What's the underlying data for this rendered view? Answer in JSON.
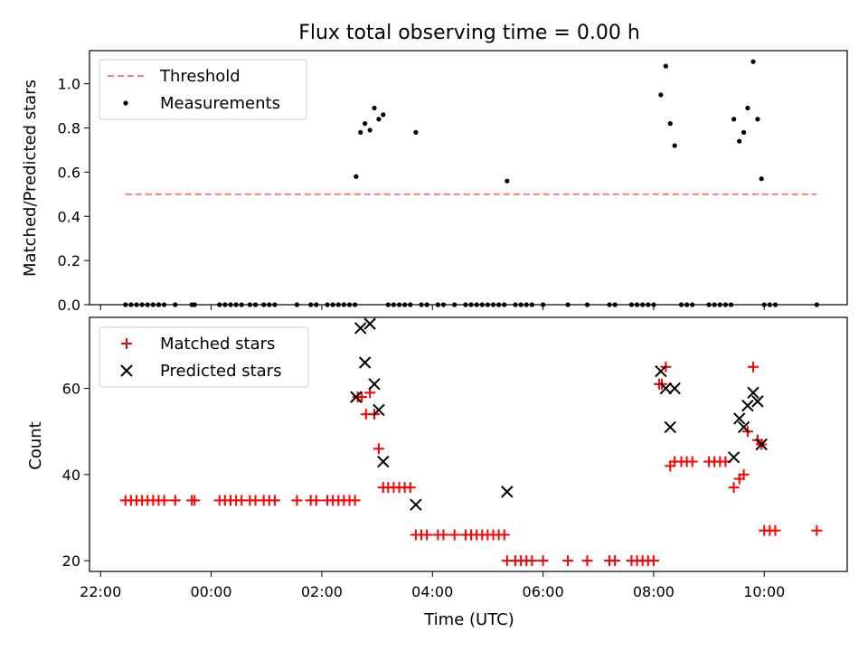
{
  "chart_data": [
    {
      "type": "scatter",
      "title": "Flux total observing time = 0.00 h",
      "xlabel": "",
      "ylabel": "Matched/Predicted stars",
      "xlim": [
        -2.2,
        11.5
      ],
      "ylim": [
        0,
        1.15
      ],
      "yticks": [
        0.0,
        0.2,
        0.4,
        0.6,
        0.8,
        1.0
      ],
      "ytick_labels": [
        "0.0",
        "0.2",
        "0.4",
        "0.6",
        "0.8",
        "1.0"
      ],
      "legend_position": "top-left",
      "threshold": {
        "name": "Threshold",
        "color": "#ff7f7f",
        "style": "dashed",
        "x": [
          -1.55,
          10.95
        ],
        "y": 0.5
      },
      "series": [
        {
          "name": "Measurements",
          "marker": "dot",
          "color": "#000000",
          "x": [
            -1.55,
            -1.45,
            -1.35,
            -1.25,
            -1.15,
            -1.05,
            -0.95,
            -0.85,
            -0.65,
            -0.35,
            -0.3,
            0.15,
            0.25,
            0.35,
            0.45,
            0.55,
            0.7,
            0.8,
            0.95,
            1.05,
            1.15,
            1.55,
            1.8,
            1.9,
            2.1,
            2.2,
            2.3,
            2.4,
            2.5,
            2.6,
            3.2,
            3.3,
            3.4,
            3.5,
            3.6,
            3.8,
            3.9,
            4.1,
            4.2,
            4.4,
            4.6,
            4.7,
            4.8,
            4.9,
            5.0,
            5.1,
            5.2,
            5.3,
            5.5,
            5.6,
            5.7,
            5.8,
            6.0,
            6.45,
            6.8,
            7.2,
            7.3,
            7.6,
            7.7,
            7.8,
            7.9,
            8.0,
            8.5,
            8.6,
            8.7,
            9.0,
            9.1,
            9.2,
            9.3,
            9.4,
            10.0,
            10.1,
            10.2,
            10.95,
            2.62,
            2.7,
            2.78,
            2.87,
            2.95,
            3.03,
            3.11,
            3.7,
            5.35,
            8.13,
            8.22,
            8.3,
            8.38,
            9.45,
            9.55,
            9.63,
            9.7,
            9.8,
            9.88,
            9.95
          ],
          "y": [
            0,
            0,
            0,
            0,
            0,
            0,
            0,
            0,
            0,
            0,
            0,
            0,
            0,
            0,
            0,
            0,
            0,
            0,
            0,
            0,
            0,
            0,
            0,
            0,
            0,
            0,
            0,
            0,
            0,
            0,
            0,
            0,
            0,
            0,
            0,
            0,
            0,
            0,
            0,
            0,
            0,
            0,
            0,
            0,
            0,
            0,
            0,
            0,
            0,
            0,
            0,
            0,
            0,
            0,
            0,
            0,
            0,
            0,
            0,
            0,
            0,
            0,
            0,
            0,
            0,
            0,
            0,
            0,
            0,
            0,
            0,
            0,
            0,
            0,
            0.58,
            0.78,
            0.82,
            0.79,
            0.89,
            0.84,
            0.86,
            0.78,
            0.56,
            0.95,
            1.08,
            0.82,
            0.72,
            0.84,
            0.74,
            0.78,
            0.89,
            1.1,
            0.84,
            0.57
          ]
        }
      ]
    },
    {
      "type": "scatter",
      "title": "",
      "xlabel": "Time (UTC)",
      "ylabel": "Count",
      "xlim": [
        -2.2,
        11.5
      ],
      "ylim": [
        17.5,
        76.5
      ],
      "yticks": [
        20,
        40,
        60
      ],
      "ytick_labels": [
        "20",
        "40",
        "60"
      ],
      "xticks": [
        -2,
        0,
        2,
        4,
        6,
        8,
        10
      ],
      "xtick_labels": [
        "22:00",
        "00:00",
        "02:00",
        "04:00",
        "06:00",
        "08:00",
        "10:00"
      ],
      "legend_position": "top-left",
      "series": [
        {
          "name": "Matched stars",
          "marker": "plus",
          "color": "#ff0000",
          "x": [
            -1.55,
            -1.45,
            -1.35,
            -1.25,
            -1.15,
            -1.05,
            -0.95,
            -0.85,
            -0.65,
            -0.35,
            -0.3,
            0.15,
            0.25,
            0.35,
            0.45,
            0.55,
            0.7,
            0.8,
            0.95,
            1.05,
            1.15,
            1.55,
            1.8,
            1.9,
            2.1,
            2.2,
            2.3,
            2.4,
            2.5,
            2.6,
            2.65,
            2.72,
            2.8,
            2.87,
            2.95,
            3.03,
            3.11,
            3.2,
            3.3,
            3.4,
            3.5,
            3.6,
            3.7,
            3.8,
            3.9,
            4.1,
            4.2,
            4.4,
            4.6,
            4.7,
            4.8,
            4.9,
            5.0,
            5.1,
            5.2,
            5.3,
            5.35,
            5.5,
            5.6,
            5.7,
            5.8,
            6.0,
            6.45,
            6.8,
            7.2,
            7.3,
            7.6,
            7.7,
            7.8,
            7.9,
            8.0,
            8.1,
            8.15,
            8.22,
            8.3,
            8.38,
            8.5,
            8.6,
            8.7,
            9.0,
            9.1,
            9.2,
            9.3,
            9.45,
            9.55,
            9.63,
            9.7,
            9.8,
            9.88,
            9.95,
            10.0,
            10.1,
            10.2,
            10.95
          ],
          "y": [
            34,
            34,
            34,
            34,
            34,
            34,
            34,
            34,
            34,
            34,
            34,
            34,
            34,
            34,
            34,
            34,
            34,
            34,
            34,
            34,
            34,
            34,
            34,
            34,
            34,
            34,
            34,
            34,
            34,
            34,
            58,
            58,
            54,
            59,
            54,
            46,
            37,
            37,
            37,
            37,
            37,
            37,
            26,
            26,
            26,
            26,
            26,
            26,
            26,
            26,
            26,
            26,
            26,
            26,
            26,
            26,
            20,
            20,
            20,
            20,
            20,
            20,
            20,
            20,
            20,
            20,
            20,
            20,
            20,
            20,
            20,
            61,
            61,
            65,
            42,
            43,
            43,
            43,
            43,
            43,
            43,
            43,
            43,
            37,
            39,
            40,
            50,
            65,
            48,
            47,
            27,
            27,
            27,
            27
          ]
        },
        {
          "name": "Predicted stars",
          "marker": "x",
          "color": "#000000",
          "x": [
            2.62,
            2.7,
            2.78,
            2.87,
            2.95,
            3.03,
            3.11,
            3.7,
            5.35,
            8.13,
            8.22,
            8.3,
            8.38,
            9.45,
            9.55,
            9.63,
            9.7,
            9.8,
            9.88,
            9.95
          ],
          "y": [
            58,
            74,
            66,
            75,
            61,
            55,
            43,
            33,
            36,
            64,
            60,
            51,
            60,
            44,
            53,
            51,
            56,
            59,
            57,
            47
          ]
        }
      ]
    }
  ]
}
